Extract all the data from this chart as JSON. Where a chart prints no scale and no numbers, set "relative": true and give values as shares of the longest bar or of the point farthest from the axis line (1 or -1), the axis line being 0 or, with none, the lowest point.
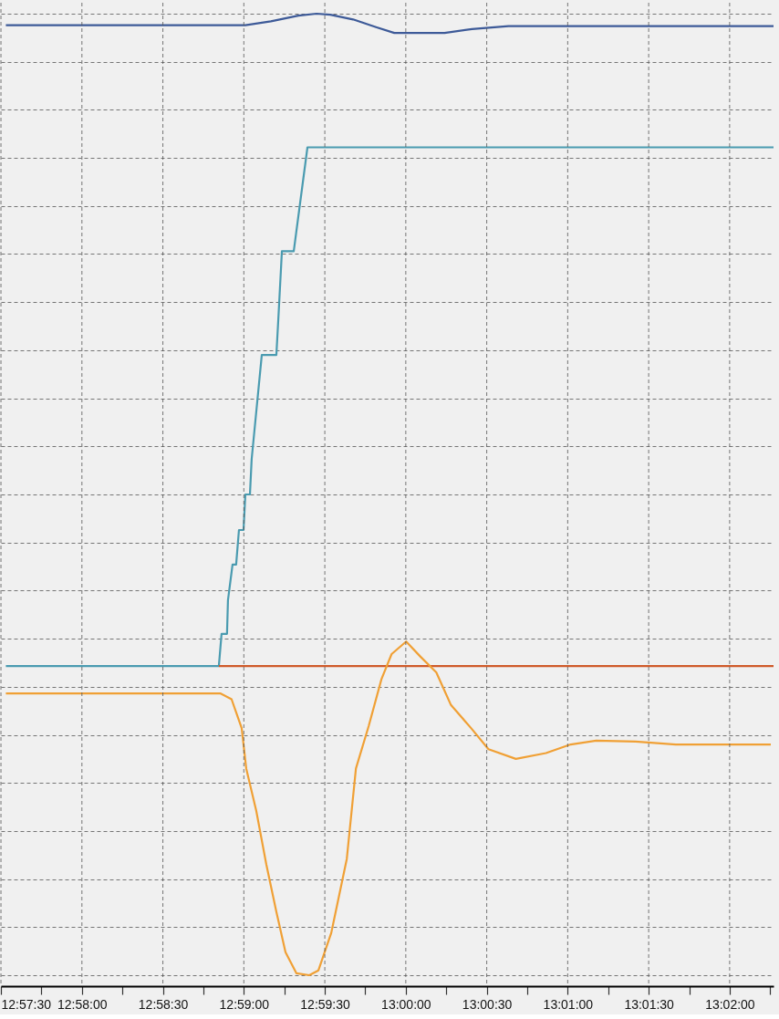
{
  "chart_data": {
    "type": "line",
    "relative": true,
    "grid": true,
    "line_style": "solid",
    "marker": "none",
    "xlim": [
      12.95833,
      13.03785
    ],
    "xticks": [
      {
        "value": 12.958333,
        "label": "12:57:30"
      },
      {
        "value": 12.9625,
        "label": null
      },
      {
        "value": 12.966667,
        "label": "12:58:00"
      },
      {
        "value": 12.970833,
        "label": null
      },
      {
        "value": 12.975,
        "label": "12:58:30"
      },
      {
        "value": 12.979167,
        "label": null
      },
      {
        "value": 12.983333,
        "label": "12:59:00"
      },
      {
        "value": 12.9875,
        "label": null
      },
      {
        "value": 12.991667,
        "label": "12:59:30"
      },
      {
        "value": 12.995833,
        "label": null
      },
      {
        "value": 13.0,
        "label": "13:00:00"
      },
      {
        "value": 13.004167,
        "label": null
      },
      {
        "value": 13.008333,
        "label": "13:00:30"
      },
      {
        "value": 13.0125,
        "label": null
      },
      {
        "value": 13.016667,
        "label": "13:01:00"
      },
      {
        "value": 13.020833,
        "label": null
      },
      {
        "value": 13.025,
        "label": "13:01:30"
      },
      {
        "value": 13.029167,
        "label": null
      },
      {
        "value": 13.033333,
        "label": "13:02:00"
      },
      {
        "value": 13.0375,
        "label": null
      }
    ],
    "series": [
      {
        "color": "#3d5a98",
        "x": [
          12.95884,
          12.98349,
          12.98612,
          12.98894,
          12.99082,
          12.99223,
          12.99458,
          12.99694,
          12.99882,
          13.00399,
          13.00681,
          13.01057,
          13.03785
        ],
        "values": [
          0.988,
          0.988,
          0.992,
          0.998,
          1.0,
          0.999,
          0.994,
          0.986,
          0.98,
          0.98,
          0.984,
          0.987,
          0.987
        ]
      },
      {
        "color": "#4a9bb0",
        "x": [
          12.95884,
          12.98076,
          12.98104,
          12.9816,
          12.9817,
          12.98217,
          12.98254,
          12.98283,
          12.9833,
          12.98349,
          12.98396,
          12.98414,
          12.98518,
          12.98668,
          12.98687,
          12.98725,
          12.98847,
          12.98988,
          13.03785
        ],
        "values": [
          0.3215,
          0.3215,
          0.355,
          0.355,
          0.39,
          0.427,
          0.427,
          0.463,
          0.463,
          0.5,
          0.5,
          0.537,
          0.645,
          0.645,
          0.68,
          0.753,
          0.753,
          0.861,
          0.861
        ]
      },
      {
        "color": "#cf5a2a",
        "x": [
          12.98076,
          13.03785
        ],
        "values": [
          0.3215,
          0.3215
        ]
      },
      {
        "color": "#f0a035",
        "x": [
          12.95884,
          12.98095,
          12.98207,
          12.98311,
          12.98358,
          12.98461,
          12.98565,
          12.98668,
          12.98762,
          12.98875,
          12.99007,
          12.99101,
          12.99233,
          12.99393,
          12.99487,
          12.99618,
          12.9975,
          12.99854,
          13.00004,
          13.00154,
          13.00314,
          13.00465,
          13.00672,
          13.00851,
          13.01133,
          13.01443,
          13.01697,
          13.0196,
          13.02365,
          13.02779,
          13.03757
        ],
        "values": [
          0.293,
          0.293,
          0.287,
          0.257,
          0.215,
          0.171,
          0.115,
          0.066,
          0.024,
          0.002,
          0.0,
          0.005,
          0.044,
          0.121,
          0.215,
          0.259,
          0.308,
          0.334,
          0.347,
          0.331,
          0.315,
          0.281,
          0.257,
          0.235,
          0.225,
          0.231,
          0.24,
          0.244,
          0.243,
          0.24,
          0.24
        ]
      }
    ]
  }
}
